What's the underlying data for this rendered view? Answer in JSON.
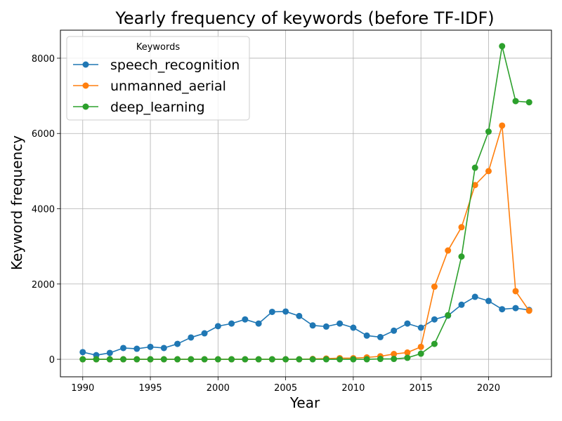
{
  "chart_data": {
    "type": "line",
    "title": "Yearly frequency of keywords (before TF-IDF)",
    "xlabel": "Year",
    "ylabel": "Keyword frequency",
    "xlim": [
      1988.35,
      2024.65
    ],
    "ylim": [
      -465,
      8745
    ],
    "xticks": [
      1990,
      1995,
      2000,
      2005,
      2010,
      2015,
      2020
    ],
    "yticks": [
      0,
      2000,
      4000,
      6000,
      8000
    ],
    "grid": true,
    "legend": {
      "title": "Keywords",
      "placement": "top-left"
    },
    "x": [
      1990,
      1991,
      1992,
      1993,
      1994,
      1995,
      1996,
      1997,
      1998,
      1999,
      2000,
      2001,
      2002,
      2003,
      2004,
      2005,
      2006,
      2007,
      2008,
      2009,
      2010,
      2011,
      2012,
      2013,
      2014,
      2015,
      2016,
      2017,
      2018,
      2019,
      2020,
      2021,
      2022,
      2023
    ],
    "series": [
      {
        "name": "speech_recognition",
        "color": "#1f77b4",
        "values": [
          190,
          110,
          170,
          300,
          280,
          330,
          300,
          410,
          580,
          690,
          880,
          950,
          1060,
          950,
          1260,
          1270,
          1150,
          900,
          870,
          950,
          840,
          630,
          590,
          760,
          950,
          840,
          1060,
          1160,
          1450,
          1660,
          1550,
          1330,
          1360,
          1310
        ]
      },
      {
        "name": "unmanned_aerial",
        "color": "#ff7f0e",
        "values": [
          0,
          0,
          0,
          0,
          0,
          0,
          0,
          0,
          0,
          0,
          0,
          0,
          0,
          0,
          0,
          0,
          0,
          10,
          20,
          30,
          30,
          50,
          80,
          140,
          180,
          330,
          1930,
          2890,
          3510,
          4630,
          5000,
          6210,
          1810,
          1290
        ]
      },
      {
        "name": "deep_learning",
        "color": "#2ca02c",
        "values": [
          0,
          0,
          0,
          0,
          0,
          0,
          0,
          0,
          0,
          0,
          0,
          0,
          0,
          0,
          0,
          0,
          0,
          0,
          0,
          0,
          0,
          0,
          10,
          10,
          40,
          150,
          410,
          1170,
          2730,
          5090,
          6050,
          8320,
          6860,
          6830
        ]
      }
    ]
  }
}
